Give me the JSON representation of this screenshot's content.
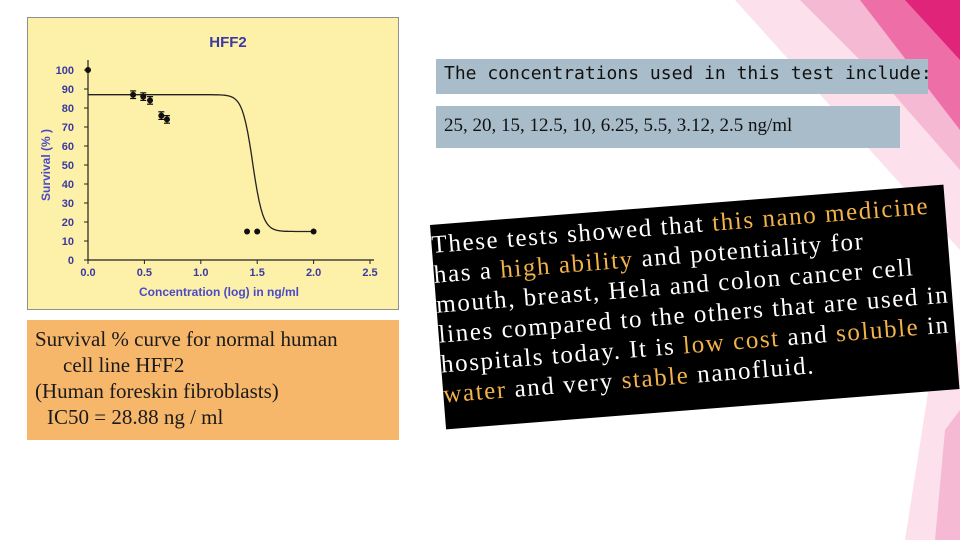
{
  "chart_data": {
    "type": "scatter",
    "title": "HFF2",
    "xlabel": "Concentration (log) in ng/ml",
    "ylabel": "Survival (% )",
    "xlim": [
      0.0,
      2.5
    ],
    "ylim": [
      0,
      100
    ],
    "x_ticks": [
      "0.0",
      "0.5",
      "1.0",
      "1.5",
      "2.0",
      "2.5"
    ],
    "y_ticks": [
      "0",
      "10",
      "20",
      "30",
      "40",
      "50",
      "60",
      "70",
      "80",
      "90",
      "100"
    ],
    "grid": false,
    "series": [
      {
        "x": [
          0.0,
          0.4,
          0.49,
          0.55,
          0.65,
          0.7,
          1.41,
          1.5,
          2.0
        ],
        "y": [
          100,
          87,
          86,
          84,
          76,
          74,
          15,
          15,
          15
        ],
        "errors": [
          0,
          2,
          2,
          2,
          2,
          2,
          0,
          0,
          0
        ]
      }
    ],
    "fit_curve": {
      "type": "sigmoid",
      "top": 87,
      "bottom": 15,
      "midpoint_log": 1.46
    }
  },
  "caption": {
    "line1": "Survival % curve for normal human",
    "line2": "cell line HFF2",
    "line3": "(Human foreskin fibroblasts)",
    "line4": "IC50 = 28.88 ng / ml"
  },
  "info": {
    "line1": "The concentrations used in this test include:",
    "line2": "25, 20, 15, 12.5, 10, 6.25, 5.5, 3.12, 2.5 ng/ml"
  },
  "description": {
    "l1_a": "These tests showed that ",
    "l1_b": "this nano medicine",
    "l2": "has a ",
    "l2_b": "high ability",
    "l2_c": " and potentiality for",
    "l3": "mouth, breast, Hela and colon cancer cell",
    "l4": "lines compared to the others that are used in",
    "l5_a": "hospitals today. It is ",
    "l5_b": "low cost",
    "l5_c": " and ",
    "l5_d": "soluble",
    "l5_e": " in",
    "l6_a": "water",
    "l6_b": " and very ",
    "l6_c": "stable",
    "l6_d": " nanofluid."
  },
  "colors": {
    "panel": "#fdf0a8",
    "title": "#3a3aa0",
    "axis_labels": "#4a4ac8",
    "caption_bg": "#f6b76b",
    "info_bg": "#a9bcc9",
    "highlight": "#f4b24a",
    "accent": "#e0247a"
  }
}
